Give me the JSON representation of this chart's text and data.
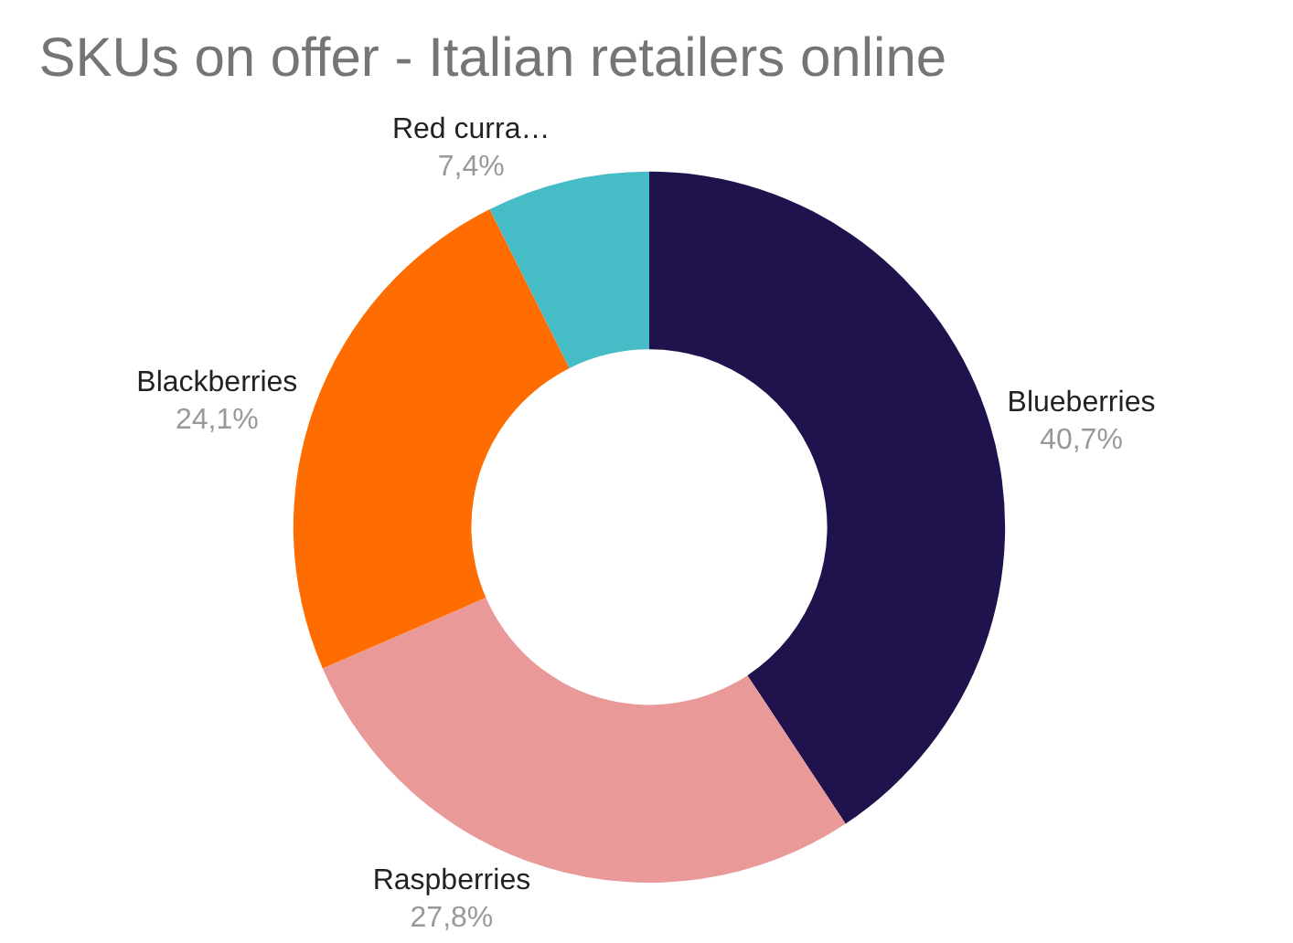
{
  "chart_data": {
    "type": "donut",
    "title": "SKUs on offer - Italian retailers online",
    "categories": [
      "Blueberries",
      "Raspberries",
      "Blackberries",
      "Red curra…"
    ],
    "values": [
      40.7,
      27.8,
      24.1,
      7.4
    ],
    "colors": [
      "#20124d",
      "#ea9999",
      "#ff6d01",
      "#46bdc6"
    ],
    "value_labels": [
      "40,7%",
      "27,8%",
      "24,1%",
      "7,4%"
    ],
    "legend": false
  }
}
